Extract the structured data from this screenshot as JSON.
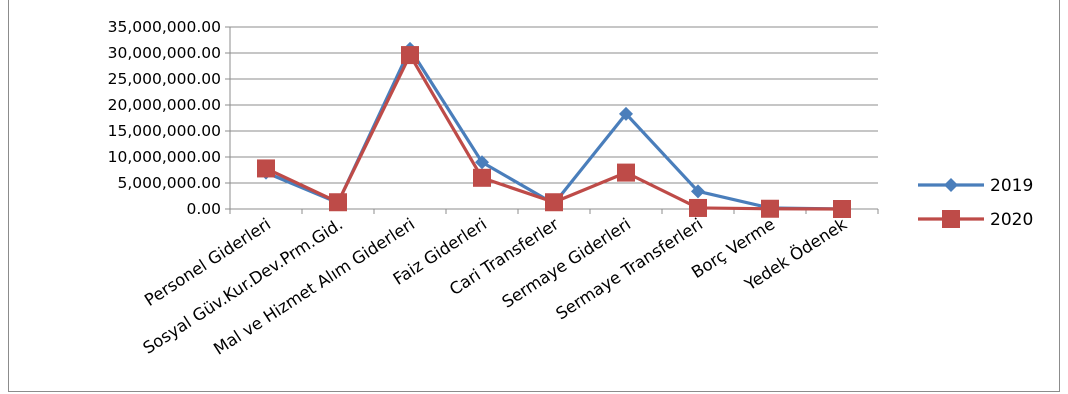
{
  "chart_data": {
    "type": "line",
    "categories": [
      "Personel Giderleri",
      "Sosyal Güv.Kur.Dev.Prm.Gid.",
      "Mal ve Hizmet Alım Giderleri",
      "Faiz Giderleri",
      "Cari Transferler",
      "Sermaye Giderleri",
      "Sermaye Transferleri",
      "Borç Verme",
      "Yedek Ödenek"
    ],
    "series": [
      {
        "name": "2019",
        "color": "#4a7ebb",
        "marker": "diamond",
        "values": [
          7000000,
          1200000,
          30800000,
          9000000,
          1000000,
          18300000,
          3400000,
          200000,
          0
        ]
      },
      {
        "name": "2020",
        "color": "#be4b48",
        "marker": "square",
        "values": [
          7800000,
          1300000,
          29600000,
          6000000,
          1300000,
          7000000,
          200000,
          50000,
          0
        ]
      }
    ],
    "y_ticks": [
      "0.00",
      "5,000,000.00",
      "10,000,000.00",
      "15,000,000.00",
      "20,000,000.00",
      "25,000,000.00",
      "30,000,000.00",
      "35,000,000.00"
    ],
    "ylim": [
      0,
      35000000
    ],
    "grid": true,
    "legend_position": "right",
    "title": "",
    "xlabel": "",
    "ylabel": ""
  }
}
